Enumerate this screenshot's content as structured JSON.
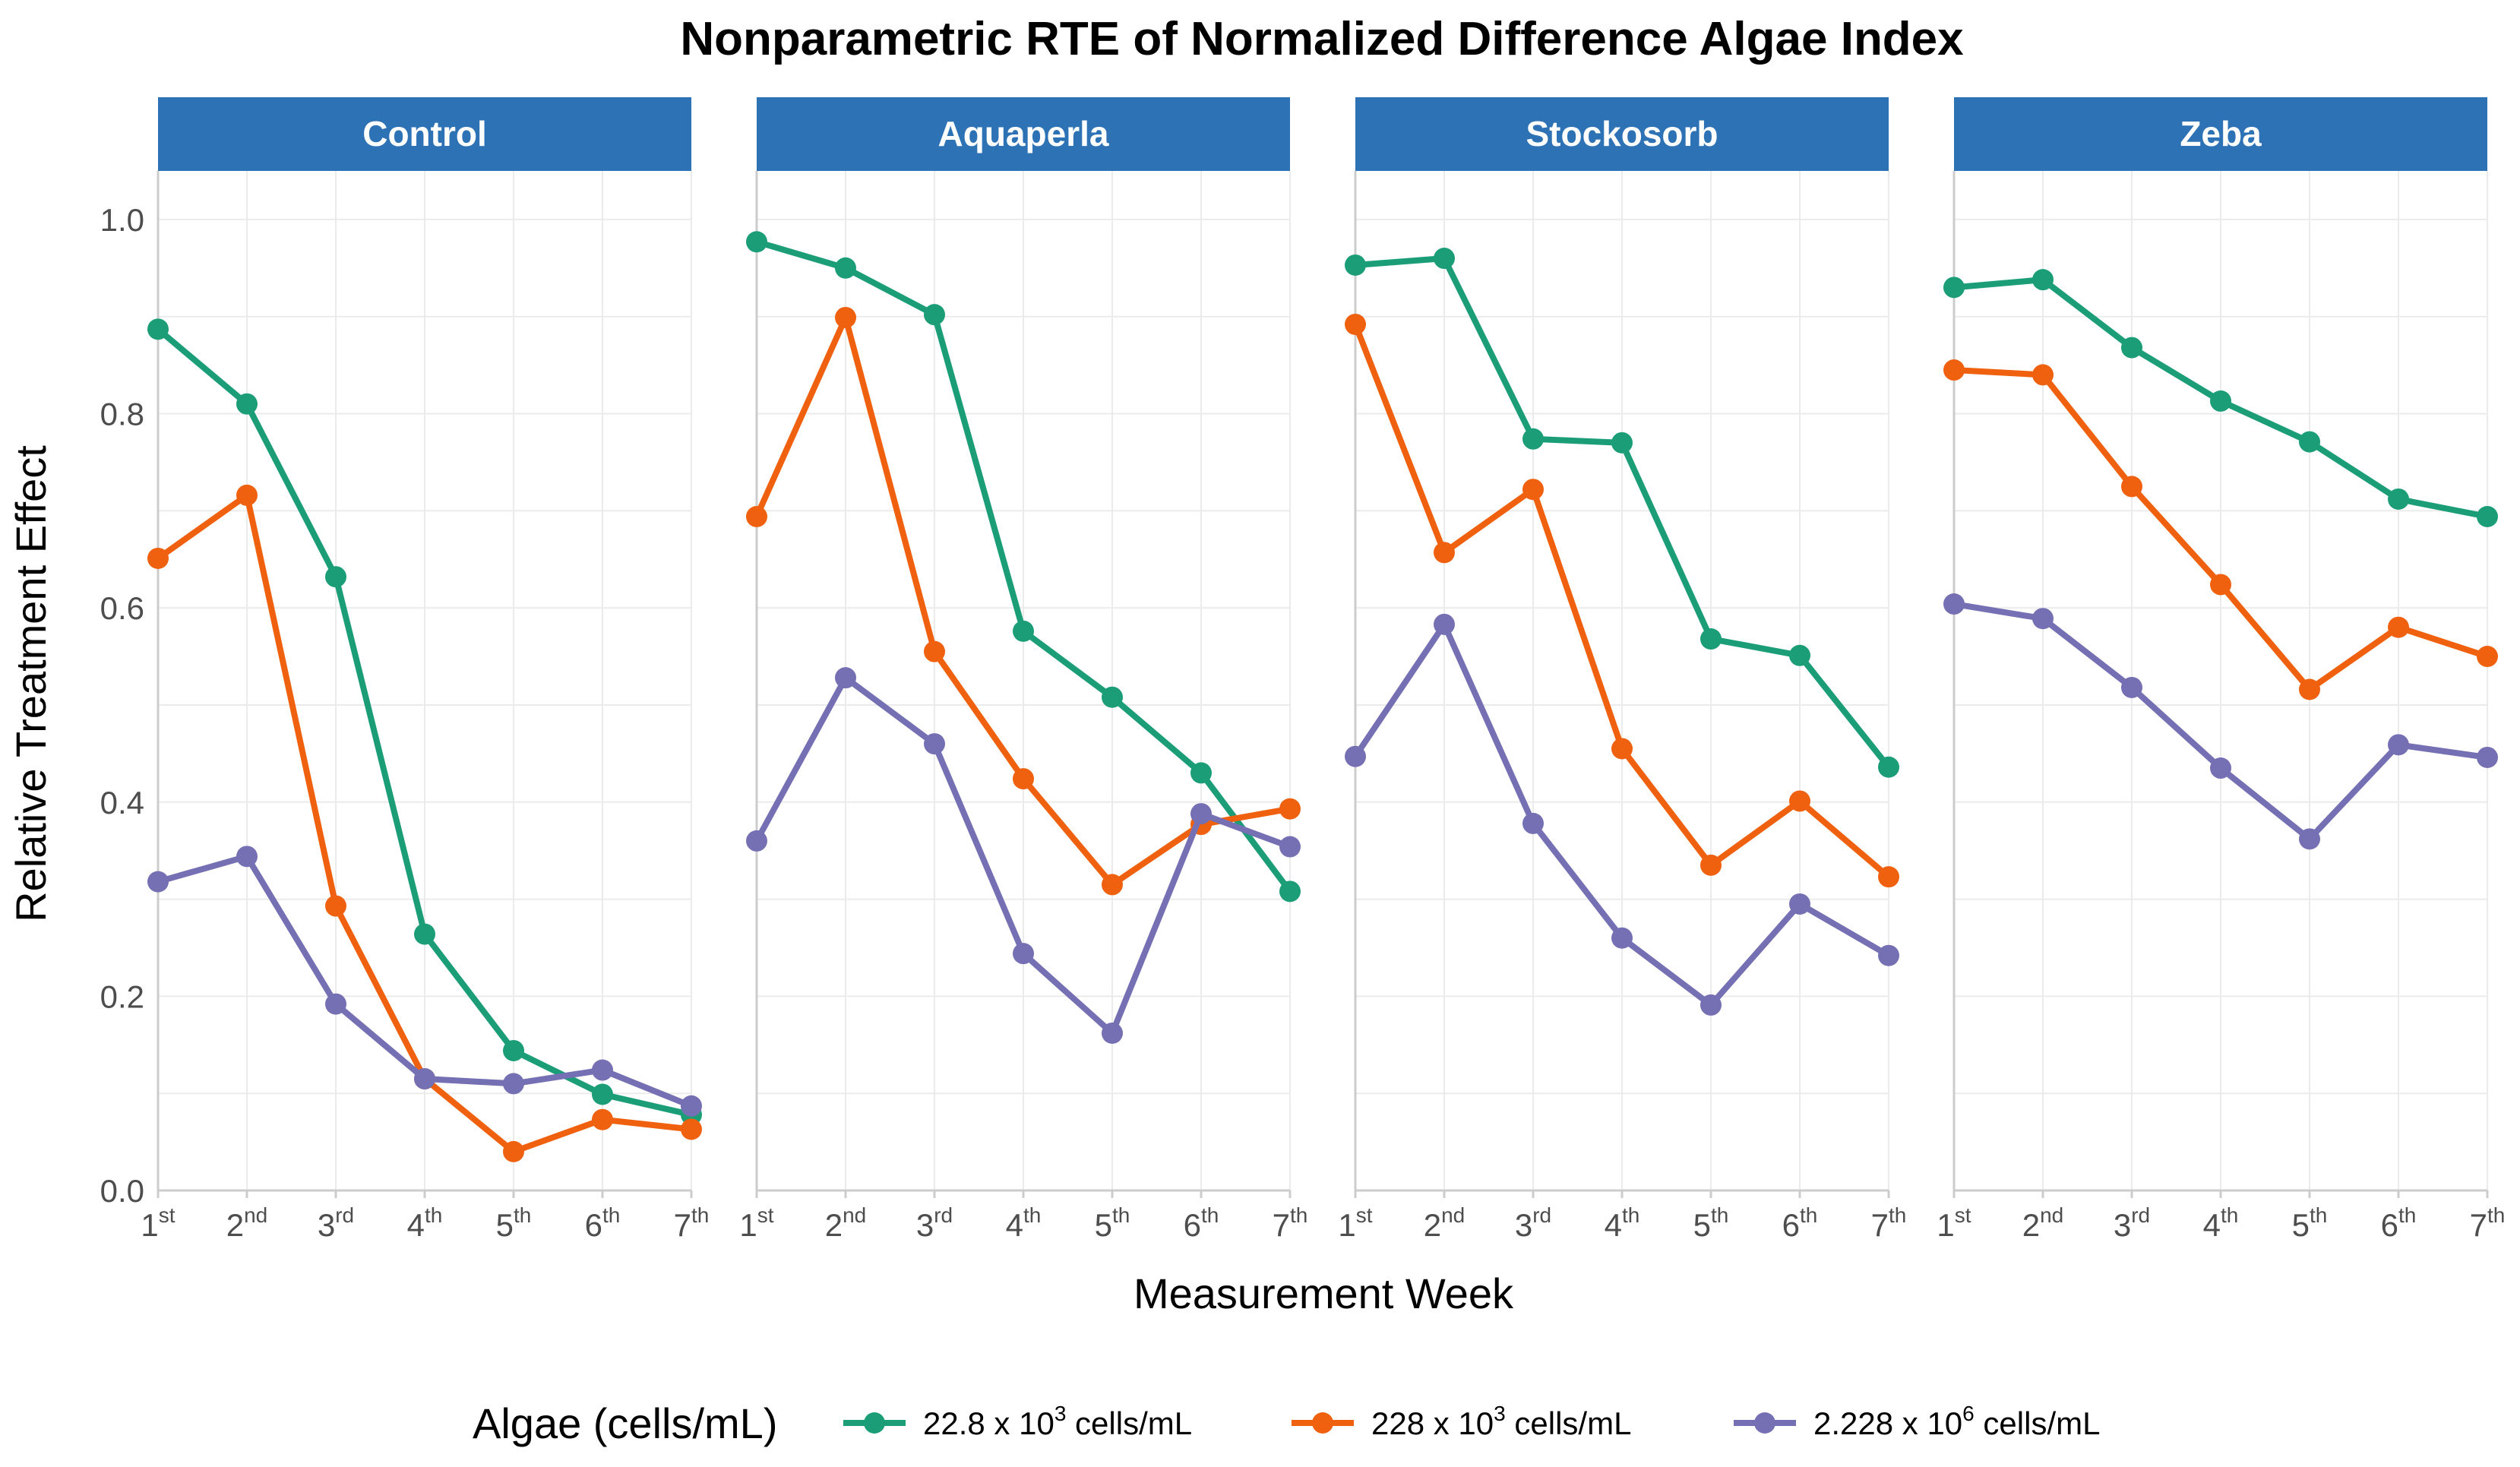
{
  "chart_data": {
    "type": "line",
    "title": "Nonparametric RTE of Normalized Difference Algae Index",
    "xlabel": "Measurement Week",
    "ylabel": "Relative Treatment Effect",
    "ylim": [
      0,
      1.05
    ],
    "yticks": [
      "0.0",
      "0.2",
      "0.4",
      "0.6",
      "0.8",
      "1.0"
    ],
    "x": [
      {
        "num": "1",
        "suffix": "st"
      },
      {
        "num": "2",
        "suffix": "nd"
      },
      {
        "num": "3",
        "suffix": "rd"
      },
      {
        "num": "4",
        "suffix": "th"
      },
      {
        "num": "5",
        "suffix": "th"
      },
      {
        "num": "6",
        "suffix": "th"
      },
      {
        "num": "7",
        "suffix": "th"
      }
    ],
    "legend": {
      "title": "Algae (cells/mL)",
      "position": "bottom"
    },
    "series_styles": [
      {
        "name": "22.8 x 10^3 cells/mL",
        "prefix": "22.8 x 10",
        "exponent": "3",
        "unit": " cells/mL",
        "color": "#1b9e77"
      },
      {
        "name": "228 x 10^3 cells/mL",
        "prefix": "228 x 10",
        "exponent": "3",
        "unit": " cells/mL",
        "color": "#f0610f"
      },
      {
        "name": "2.228 x 10^6 cells/mL",
        "prefix": "2.228 x 10",
        "exponent": "6",
        "unit": " cells/mL",
        "color": "#7570b3"
      }
    ],
    "strip_color": "#2e72b6",
    "panels": [
      {
        "label": "Control",
        "series": [
          {
            "name": "22.8 x 10^3 cells/mL",
            "values": [
              0.887,
              0.81,
              0.632,
              0.264,
              0.144,
              0.099,
              0.078
            ]
          },
          {
            "name": "228 x 10^3 cells/mL",
            "values": [
              0.651,
              0.716,
              0.293,
              0.115,
              0.04,
              0.073,
              0.063
            ]
          },
          {
            "name": "2.228 x 10^6 cells/mL",
            "values": [
              0.318,
              0.344,
              0.192,
              0.115,
              0.11,
              0.124,
              0.087
            ]
          }
        ]
      },
      {
        "label": "Aquaperla",
        "series": [
          {
            "name": "22.8 x 10^3 cells/mL",
            "values": [
              0.977,
              0.95,
              0.902,
              0.576,
              0.508,
              0.43,
              0.308
            ]
          },
          {
            "name": "228 x 10^3 cells/mL",
            "values": [
              0.694,
              0.899,
              0.555,
              0.424,
              0.315,
              0.377,
              0.393
            ]
          },
          {
            "name": "2.228 x 10^6 cells/mL",
            "values": [
              0.36,
              0.528,
              0.46,
              0.244,
              0.162,
              0.388,
              0.354
            ]
          }
        ]
      },
      {
        "label": "Stockosorb",
        "series": [
          {
            "name": "22.8 x 10^3 cells/mL",
            "values": [
              0.953,
              0.96,
              0.774,
              0.77,
              0.568,
              0.551,
              0.436
            ]
          },
          {
            "name": "228 x 10^3 cells/mL",
            "values": [
              0.892,
              0.657,
              0.722,
              0.455,
              0.335,
              0.401,
              0.323
            ]
          },
          {
            "name": "2.228 x 10^6 cells/mL",
            "values": [
              0.447,
              0.583,
              0.378,
              0.26,
              0.191,
              0.295,
              0.242
            ]
          }
        ]
      },
      {
        "label": "Zeba",
        "series": [
          {
            "name": "22.8 x 10^3 cells/mL",
            "values": [
              0.93,
              0.938,
              0.868,
              0.813,
              0.771,
              0.712,
              0.694
            ]
          },
          {
            "name": "228 x 10^3 cells/mL",
            "values": [
              0.845,
              0.84,
              0.725,
              0.624,
              0.516,
              0.58,
              0.55
            ]
          },
          {
            "name": "2.228 x 10^6 cells/mL",
            "values": [
              0.604,
              0.589,
              0.518,
              0.435,
              0.362,
              0.459,
              0.446
            ]
          }
        ]
      }
    ]
  }
}
